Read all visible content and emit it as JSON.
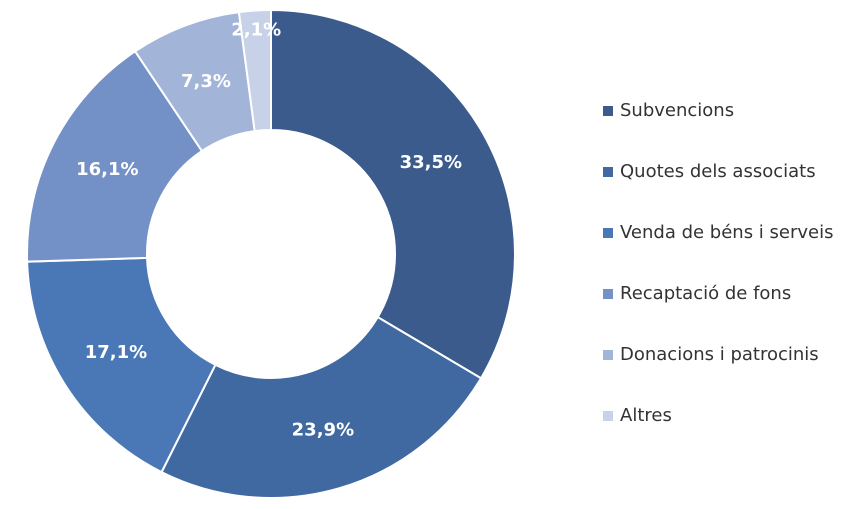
{
  "chart_data": {
    "type": "donut",
    "categories": [
      "Subvencions",
      "Quotes dels associats",
      "Venda de béns i serveis",
      "Recaptació de fons",
      "Donacions i patrocinis",
      "Altres"
    ],
    "values": [
      33.5,
      23.9,
      17.1,
      16.1,
      7.3,
      2.1
    ],
    "value_labels": [
      "33,5%",
      "23,9%",
      "17,1%",
      "16,1%",
      "7,3%",
      "2,1%"
    ],
    "colors": [
      "#3b5b8c",
      "#4169a1",
      "#4a78b6",
      "#7391c6",
      "#a2b4d8",
      "#c7d2e8"
    ],
    "legend": "right"
  }
}
